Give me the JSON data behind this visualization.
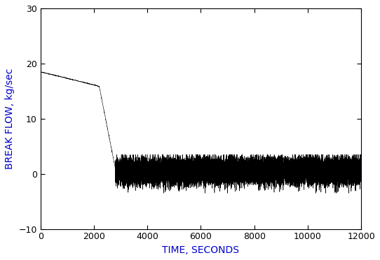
{
  "title": "",
  "xlabel": "TIME, SECONDS",
  "ylabel": "BREAK FLOW, kg/sec",
  "xlim": [
    0,
    12000
  ],
  "ylim": [
    -10,
    30
  ],
  "xticks": [
    0,
    2000,
    4000,
    6000,
    8000,
    10000,
    12000
  ],
  "yticks": [
    -10,
    0,
    10,
    20,
    30
  ],
  "line_color": "#000000",
  "background_color": "#ffffff",
  "xlabel_color": "#0000cc",
  "ylabel_color": "#0000cc",
  "tick_color": "#000000",
  "phase1_t_start": 0,
  "phase1_t_end": 2100,
  "phase1_v_start": 18.5,
  "phase1_v_end": 16.0,
  "phase2_t_start": 2100,
  "phase2_t_end": 2200,
  "phase2_v_start": 16.0,
  "phase2_v_end": 15.8,
  "phase3_t_start": 2200,
  "phase3_t_end": 2800,
  "phase3_v_start": 15.8,
  "phase3_v_end": 1.0,
  "oscillation_t_start": 2800,
  "oscillation_t_end": 12000,
  "oscillation_mean": 0.5,
  "oscillation_std": 1.2,
  "noise_seed": 42,
  "n_oscillation_points": 18200
}
